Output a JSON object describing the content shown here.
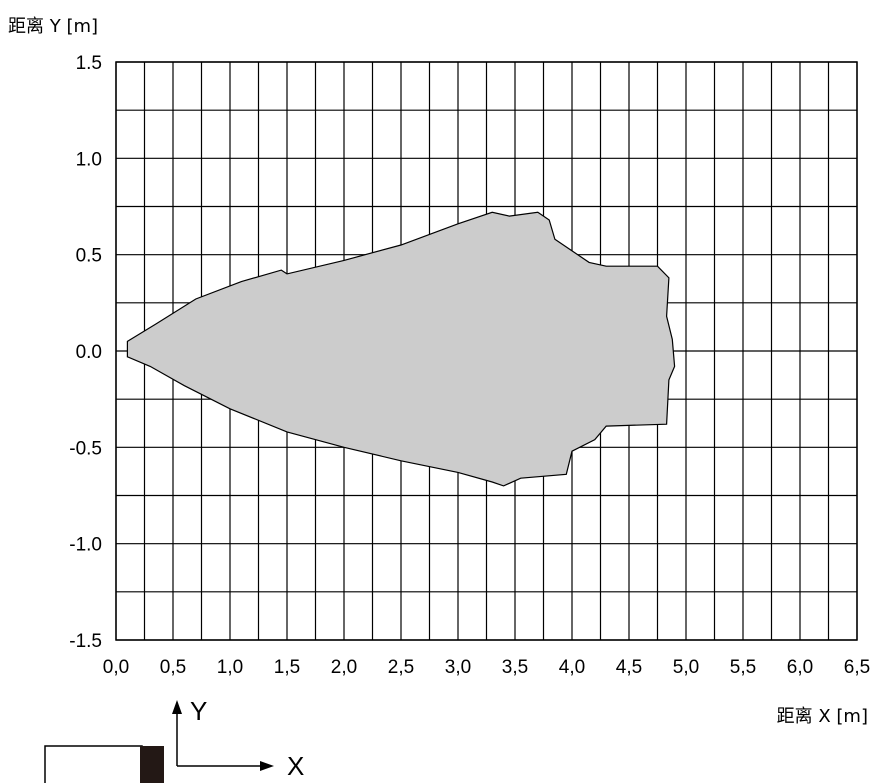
{
  "chart_data": {
    "type": "area",
    "title": "",
    "xlabel": "距离 X [m]",
    "ylabel": "距离 Y [m]",
    "xlim": [
      0.0,
      6.5
    ],
    "ylim": [
      -1.5,
      1.5
    ],
    "x_ticks": [
      "0,0",
      "0,5",
      "1,0",
      "1,5",
      "2,0",
      "2,5",
      "3,0",
      "3,5",
      "4,0",
      "4,5",
      "5,0",
      "5,5",
      "6,0",
      "6,5"
    ],
    "y_ticks": [
      "1.5",
      "1.0",
      "0.5",
      "0.0",
      "-0.5",
      "-1.0",
      "-1.5"
    ],
    "x_tick_values": [
      0.0,
      0.5,
      1.0,
      1.5,
      2.0,
      2.5,
      3.0,
      3.5,
      4.0,
      4.5,
      5.0,
      5.5,
      6.0,
      6.5
    ],
    "y_tick_values": [
      1.5,
      1.0,
      0.5,
      0.0,
      -0.5,
      -1.0,
      -1.5
    ],
    "grid": true,
    "grid_x_step": 0.25,
    "grid_y_step": 0.25,
    "fill_color": "#cccccc",
    "series": [
      {
        "outline": [
          [
            0.1,
            0.05
          ],
          [
            0.35,
            0.14
          ],
          [
            0.7,
            0.27
          ],
          [
            1.1,
            0.36
          ],
          [
            1.45,
            0.42
          ],
          [
            1.5,
            0.4
          ],
          [
            2.0,
            0.47
          ],
          [
            2.5,
            0.55
          ],
          [
            3.0,
            0.66
          ],
          [
            3.3,
            0.72
          ],
          [
            3.45,
            0.7
          ],
          [
            3.7,
            0.72
          ],
          [
            3.8,
            0.68
          ],
          [
            3.85,
            0.58
          ],
          [
            4.15,
            0.46
          ],
          [
            4.3,
            0.44
          ],
          [
            4.75,
            0.44
          ],
          [
            4.85,
            0.38
          ],
          [
            4.83,
            0.18
          ],
          [
            4.88,
            0.06
          ],
          [
            4.9,
            -0.08
          ],
          [
            4.85,
            -0.15
          ],
          [
            4.83,
            -0.38
          ],
          [
            4.3,
            -0.39
          ],
          [
            4.2,
            -0.46
          ],
          [
            4.0,
            -0.52
          ],
          [
            3.95,
            -0.64
          ],
          [
            3.55,
            -0.66
          ],
          [
            3.4,
            -0.7
          ],
          [
            3.3,
            -0.68
          ],
          [
            3.0,
            -0.63
          ],
          [
            2.5,
            -0.57
          ],
          [
            2.0,
            -0.5
          ],
          [
            1.5,
            -0.42
          ],
          [
            1.0,
            -0.3
          ],
          [
            0.6,
            -0.18
          ],
          [
            0.3,
            -0.08
          ],
          [
            0.1,
            -0.03
          ]
        ]
      }
    ]
  },
  "diagram": {
    "y_label": "Y",
    "x_label": "X"
  }
}
